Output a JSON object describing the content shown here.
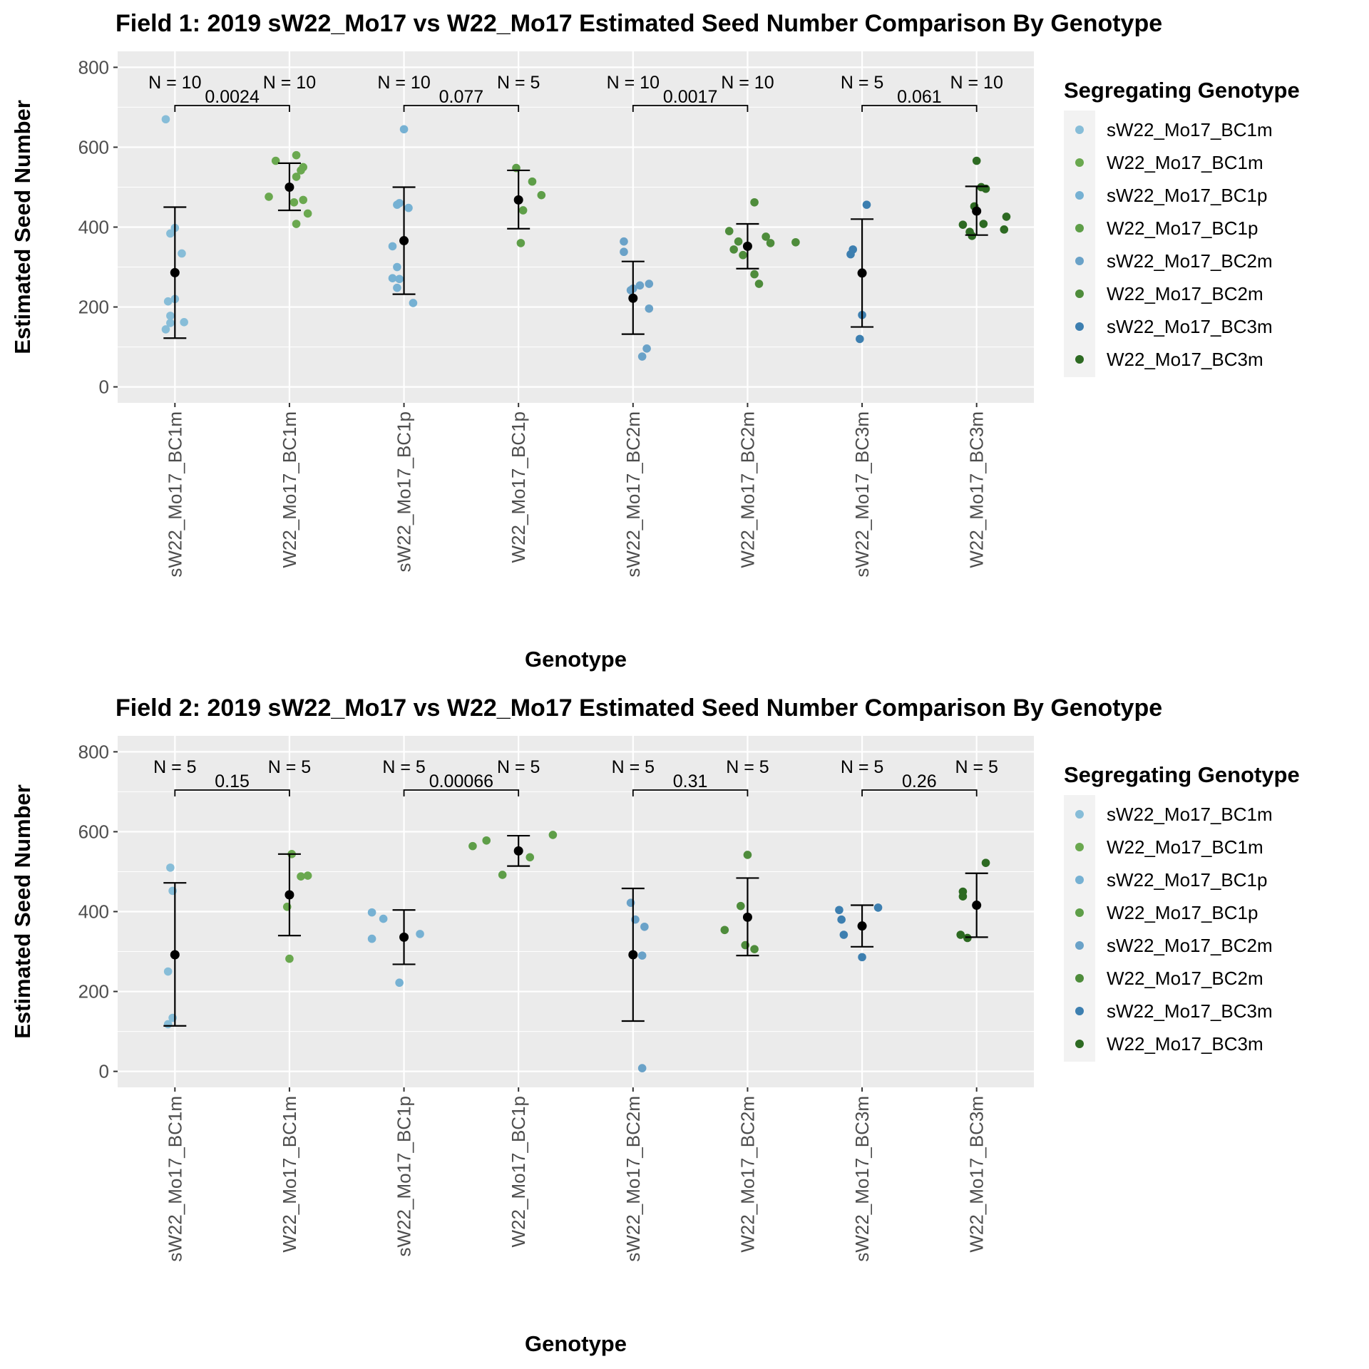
{
  "chart_data": [
    {
      "type": "scatter",
      "panel": "field-1",
      "title": "Field 1: 2019 sW22_Mo17 vs W22_Mo17 Estimated Seed Number Comparison By Genotype",
      "xlabel": "Genotype",
      "ylabel": "Estimated Seed Number",
      "ylim": [
        -40,
        840
      ],
      "yticks": [
        0,
        200,
        400,
        600,
        800
      ],
      "categories": [
        "sW22_Mo17_BC1m",
        "W22_Mo17_BC1m",
        "sW22_Mo17_BC1p",
        "W22_Mo17_BC1p",
        "sW22_Mo17_BC2m",
        "W22_Mo17_BC2m",
        "sW22_Mo17_BC3m",
        "W22_Mo17_BC3m"
      ],
      "legend_title": "Segregating Genotype",
      "legend_position": "right",
      "series": [
        {
          "name": "sW22_Mo17_BC1m",
          "color": "#87bdd8",
          "mean": 286,
          "lower": 122,
          "upper": 450,
          "n_label": "N = 10",
          "points": [
            [
              -0.08,
              670
            ],
            [
              -0.04,
              384
            ],
            [
              0,
              398
            ],
            [
              0.06,
              334
            ],
            [
              -0.06,
              214
            ],
            [
              0,
              220
            ],
            [
              -0.04,
              178
            ],
            [
              -0.08,
              144
            ],
            [
              -0.04,
              160
            ],
            [
              0.08,
              162
            ]
          ]
        },
        {
          "name": "W22_Mo17_BC1m",
          "color": "#6aa84f",
          "mean": 500,
          "lower": 442,
          "upper": 560,
          "n_label": "N = 10",
          "points": [
            [
              -0.12,
              566
            ],
            [
              0.06,
              580
            ],
            [
              0.12,
              550
            ],
            [
              0.12,
              468
            ],
            [
              0.1,
              542
            ],
            [
              0.06,
              526
            ],
            [
              -0.18,
              476
            ],
            [
              0.04,
              462
            ],
            [
              0.16,
              434
            ],
            [
              0.06,
              408
            ]
          ]
        },
        {
          "name": "sW22_Mo17_BC1p",
          "color": "#76b1d3",
          "mean": 366,
          "lower": 232,
          "upper": 500,
          "n_label": "N = 10",
          "points": [
            [
              0,
              645
            ],
            [
              -0.06,
              456
            ],
            [
              -0.04,
              460
            ],
            [
              0.04,
              448
            ],
            [
              -0.1,
              352
            ],
            [
              -0.06,
              300
            ],
            [
              -0.1,
              272
            ],
            [
              -0.04,
              270
            ],
            [
              -0.06,
              248
            ],
            [
              0.08,
              210
            ]
          ]
        },
        {
          "name": "W22_Mo17_BC1p",
          "color": "#5e9e48",
          "mean": 468,
          "lower": 396,
          "upper": 542,
          "n_label": "N = 5",
          "points": [
            [
              -0.02,
              548
            ],
            [
              0.12,
              514
            ],
            [
              0.04,
              442
            ],
            [
              0.2,
              480
            ],
            [
              0.02,
              360
            ]
          ]
        },
        {
          "name": "sW22_Mo17_BC2m",
          "color": "#6aa2c8",
          "mean": 222,
          "lower": 132,
          "upper": 314,
          "n_label": "N = 10",
          "points": [
            [
              -0.08,
              364
            ],
            [
              -0.08,
              338
            ],
            [
              0,
              246
            ],
            [
              0.06,
              254
            ],
            [
              0.14,
              258
            ],
            [
              -0.02,
              242
            ],
            [
              0.14,
              196
            ],
            [
              0.12,
              96
            ],
            [
              0.08,
              76
            ],
            [
              0,
              222
            ]
          ]
        },
        {
          "name": "W22_Mo17_BC2m",
          "color": "#4e8c3b",
          "mean": 352,
          "lower": 296,
          "upper": 408,
          "n_label": "N = 10",
          "points": [
            [
              0.06,
              462
            ],
            [
              -0.16,
              390
            ],
            [
              -0.08,
              364
            ],
            [
              0.16,
              376
            ],
            [
              0.2,
              360
            ],
            [
              0.42,
              362
            ],
            [
              -0.12,
              344
            ],
            [
              -0.04,
              330
            ],
            [
              0.06,
              282
            ],
            [
              0.1,
              258
            ]
          ]
        },
        {
          "name": "sW22_Mo17_BC3m",
          "color": "#3d7fb0",
          "mean": 285,
          "lower": 150,
          "upper": 420,
          "n_label": "N = 5",
          "points": [
            [
              0.04,
              456
            ],
            [
              -0.08,
              344
            ],
            [
              -0.1,
              332
            ],
            [
              0,
              180
            ],
            [
              -0.02,
              120
            ]
          ]
        },
        {
          "name": "W22_Mo17_BC3m",
          "color": "#2d6a22",
          "mean": 440,
          "lower": 380,
          "upper": 502,
          "n_label": "N = 10",
          "points": [
            [
              0,
              566
            ],
            [
              0.04,
              500
            ],
            [
              0.08,
              496
            ],
            [
              -0.02,
              452
            ],
            [
              0.26,
              426
            ],
            [
              -0.12,
              406
            ],
            [
              0.06,
              408
            ],
            [
              0.24,
              394
            ],
            [
              -0.06,
              388
            ],
            [
              -0.04,
              378
            ]
          ]
        }
      ],
      "comparisons": [
        {
          "groups": [
            0,
            1
          ],
          "p_label": "0.0024"
        },
        {
          "groups": [
            2,
            3
          ],
          "p_label": "0.077"
        },
        {
          "groups": [
            4,
            5
          ],
          "p_label": "0.0017"
        },
        {
          "groups": [
            6,
            7
          ],
          "p_label": "0.061"
        }
      ]
    },
    {
      "type": "scatter",
      "panel": "field-2",
      "title": "Field 2: 2019 sW22_Mo17 vs W22_Mo17 Estimated Seed Number Comparison By Genotype",
      "xlabel": "Genotype",
      "ylabel": "Estimated Seed Number",
      "ylim": [
        -40,
        840
      ],
      "yticks": [
        0,
        200,
        400,
        600,
        800
      ],
      "categories": [
        "sW22_Mo17_BC1m",
        "W22_Mo17_BC1m",
        "sW22_Mo17_BC1p",
        "W22_Mo17_BC1p",
        "sW22_Mo17_BC2m",
        "W22_Mo17_BC2m",
        "sW22_Mo17_BC3m",
        "W22_Mo17_BC3m"
      ],
      "legend_title": "Segregating Genotype",
      "legend_position": "right",
      "series": [
        {
          "name": "sW22_Mo17_BC1m",
          "color": "#87bdd8",
          "mean": 292,
          "lower": 114,
          "upper": 472,
          "n_label": "N = 5",
          "points": [
            [
              -0.04,
              510
            ],
            [
              -0.02,
              452
            ],
            [
              -0.06,
              250
            ],
            [
              -0.02,
              134
            ],
            [
              -0.06,
              118
            ]
          ]
        },
        {
          "name": "W22_Mo17_BC1m",
          "color": "#6aa84f",
          "mean": 442,
          "lower": 340,
          "upper": 544,
          "n_label": "N = 5",
          "points": [
            [
              0.02,
              544
            ],
            [
              0.1,
              488
            ],
            [
              0.16,
              490
            ],
            [
              -0.02,
              412
            ],
            [
              0,
              282
            ]
          ]
        },
        {
          "name": "sW22_Mo17_BC1p",
          "color": "#76b1d3",
          "mean": 336,
          "lower": 268,
          "upper": 404,
          "n_label": "N = 5",
          "points": [
            [
              -0.28,
              398
            ],
            [
              -0.18,
              382
            ],
            [
              -0.28,
              332
            ],
            [
              0.14,
              344
            ],
            [
              -0.04,
              222
            ]
          ]
        },
        {
          "name": "W22_Mo17_BC1p",
          "color": "#5e9e48",
          "mean": 552,
          "lower": 514,
          "upper": 590,
          "n_label": "N = 5",
          "points": [
            [
              -0.4,
              564
            ],
            [
              -0.28,
              578
            ],
            [
              0.3,
              592
            ],
            [
              0.1,
              536
            ],
            [
              -0.14,
              492
            ]
          ]
        },
        {
          "name": "sW22_Mo17_BC2m",
          "color": "#6aa2c8",
          "mean": 292,
          "lower": 126,
          "upper": 458,
          "n_label": "N = 5",
          "points": [
            [
              -0.02,
              422
            ],
            [
              0.02,
              380
            ],
            [
              0.1,
              362
            ],
            [
              0.08,
              290
            ],
            [
              0.08,
              8
            ]
          ]
        },
        {
          "name": "W22_Mo17_BC2m",
          "color": "#4e8c3b",
          "mean": 386,
          "lower": 290,
          "upper": 484,
          "n_label": "N = 5",
          "points": [
            [
              0,
              542
            ],
            [
              -0.06,
              414
            ],
            [
              -0.2,
              354
            ],
            [
              -0.02,
              316
            ],
            [
              0.06,
              306
            ]
          ]
        },
        {
          "name": "sW22_Mo17_BC3m",
          "color": "#3d7fb0",
          "mean": 364,
          "lower": 312,
          "upper": 416,
          "n_label": "N = 5",
          "points": [
            [
              -0.2,
              404
            ],
            [
              -0.18,
              380
            ],
            [
              0.14,
              410
            ],
            [
              -0.16,
              342
            ],
            [
              0,
              286
            ]
          ]
        },
        {
          "name": "W22_Mo17_BC3m",
          "color": "#2d6a22",
          "mean": 416,
          "lower": 336,
          "upper": 496,
          "n_label": "N = 5",
          "points": [
            [
              0.08,
              522
            ],
            [
              -0.12,
              450
            ],
            [
              -0.12,
              438
            ],
            [
              -0.14,
              342
            ],
            [
              -0.08,
              334
            ]
          ]
        }
      ],
      "comparisons": [
        {
          "groups": [
            0,
            1
          ],
          "p_label": "0.15"
        },
        {
          "groups": [
            2,
            3
          ],
          "p_label": "0.00066"
        },
        {
          "groups": [
            4,
            5
          ],
          "p_label": "0.31"
        },
        {
          "groups": [
            6,
            7
          ],
          "p_label": "0.26"
        }
      ]
    }
  ]
}
